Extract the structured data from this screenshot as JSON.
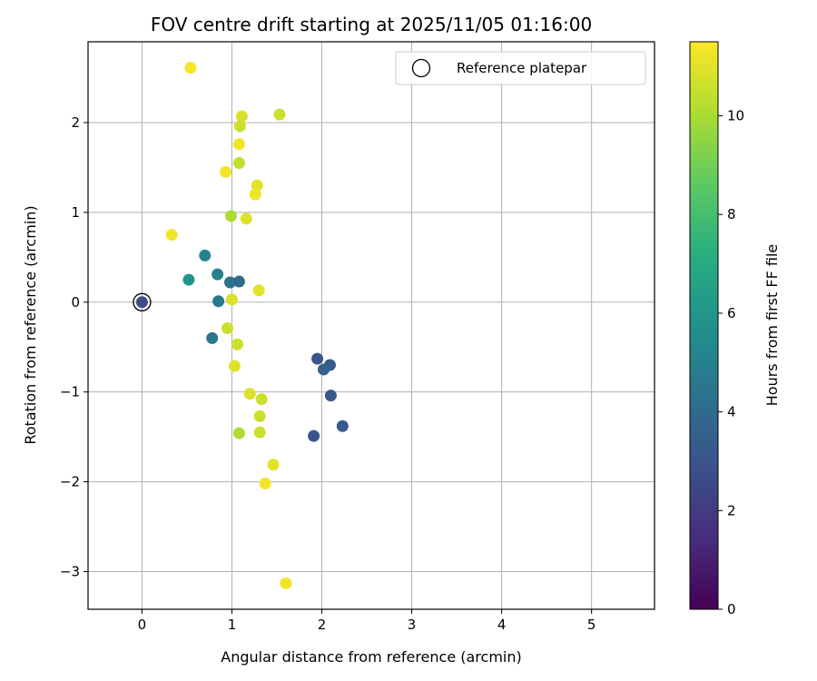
{
  "chart_data": {
    "type": "scatter",
    "title": "FOV centre drift starting at 2025/11/05 01:16:00",
    "xlabel": "Angular distance from reference (arcmin)",
    "ylabel": "Rotation from reference (arcmin)",
    "xlim": [
      -0.6,
      5.7
    ],
    "ylim": [
      -3.42,
      2.9
    ],
    "xticks": [
      0,
      1,
      2,
      3,
      4,
      5
    ],
    "xtick_labels": [
      "0",
      "1",
      "2",
      "3",
      "4",
      "5"
    ],
    "yticks": [
      -3,
      -2,
      -1,
      0,
      1,
      2
    ],
    "ytick_labels": [
      "−3",
      "−2",
      "−1",
      "0",
      "1",
      "2"
    ],
    "grid": true,
    "legend": {
      "position": "top-right",
      "entries": [
        "Reference platepar"
      ]
    },
    "colorbar": {
      "label": "Hours from first FF file",
      "colormap": "viridis",
      "range": [
        0,
        11.5
      ],
      "ticks": [
        0,
        2,
        4,
        6,
        8,
        10
      ],
      "tick_labels": [
        "0",
        "2",
        "4",
        "6",
        "8",
        "10"
      ]
    },
    "reference": {
      "x": 0,
      "y": 0,
      "hours": 2.6
    },
    "points": [
      {
        "x": 0.54,
        "y": 2.61,
        "h": 11.4
      },
      {
        "x": 1.11,
        "y": 2.07,
        "h": 10.8
      },
      {
        "x": 1.53,
        "y": 2.09,
        "h": 10.6
      },
      {
        "x": 1.09,
        "y": 1.96,
        "h": 10.6
      },
      {
        "x": 1.08,
        "y": 1.76,
        "h": 11.3
      },
      {
        "x": 1.08,
        "y": 1.55,
        "h": 10.4
      },
      {
        "x": 0.93,
        "y": 1.45,
        "h": 11.3
      },
      {
        "x": 1.28,
        "y": 1.3,
        "h": 11.0
      },
      {
        "x": 1.26,
        "y": 1.2,
        "h": 11.3
      },
      {
        "x": 0.99,
        "y": 0.96,
        "h": 10.1
      },
      {
        "x": 1.16,
        "y": 0.93,
        "h": 10.9
      },
      {
        "x": 0.33,
        "y": 0.75,
        "h": 11.3
      },
      {
        "x": 0.7,
        "y": 0.52,
        "h": 5.2
      },
      {
        "x": 0.52,
        "y": 0.25,
        "h": 5.9
      },
      {
        "x": 0.84,
        "y": 0.31,
        "h": 5.0
      },
      {
        "x": 0.98,
        "y": 0.22,
        "h": 4.3
      },
      {
        "x": 1.08,
        "y": 0.23,
        "h": 3.9
      },
      {
        "x": 1.3,
        "y": 0.13,
        "h": 11.0
      },
      {
        "x": 1.0,
        "y": 0.03,
        "h": 10.9
      },
      {
        "x": 0.85,
        "y": 0.01,
        "h": 4.6
      },
      {
        "x": 0.95,
        "y": -0.29,
        "h": 10.6
      },
      {
        "x": 0.78,
        "y": -0.4,
        "h": 4.5
      },
      {
        "x": 1.06,
        "y": -0.47,
        "h": 10.6
      },
      {
        "x": 1.03,
        "y": -0.71,
        "h": 10.9
      },
      {
        "x": 1.95,
        "y": -0.63,
        "h": 3.0
      },
      {
        "x": 2.09,
        "y": -0.7,
        "h": 3.2
      },
      {
        "x": 2.02,
        "y": -0.75,
        "h": 3.5
      },
      {
        "x": 1.2,
        "y": -1.02,
        "h": 10.9
      },
      {
        "x": 1.33,
        "y": -1.08,
        "h": 10.6
      },
      {
        "x": 2.1,
        "y": -1.04,
        "h": 3.1
      },
      {
        "x": 1.31,
        "y": -1.27,
        "h": 10.6
      },
      {
        "x": 2.23,
        "y": -1.38,
        "h": 3.2
      },
      {
        "x": 1.08,
        "y": -1.46,
        "h": 10.1
      },
      {
        "x": 1.31,
        "y": -1.45,
        "h": 10.6
      },
      {
        "x": 1.91,
        "y": -1.49,
        "h": 3.0
      },
      {
        "x": 1.46,
        "y": -1.81,
        "h": 11.0
      },
      {
        "x": 1.37,
        "y": -2.02,
        "h": 11.3
      },
      {
        "x": 1.6,
        "y": -3.13,
        "h": 11.3
      }
    ]
  }
}
